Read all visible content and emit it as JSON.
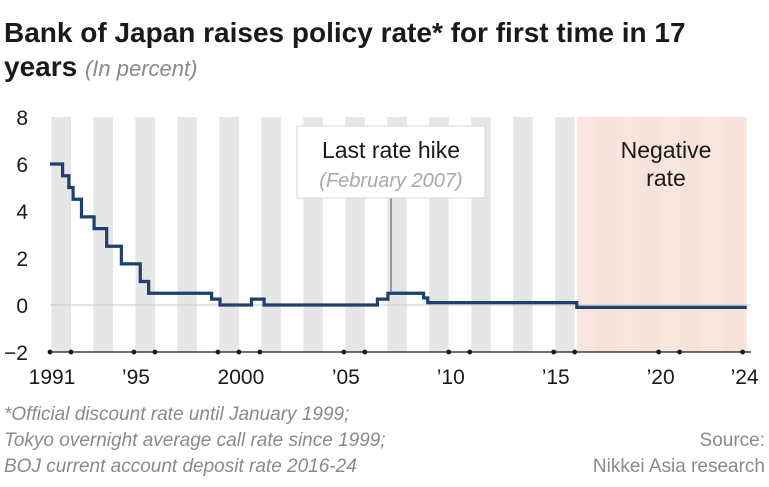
{
  "header": {
    "title": "Bank of Japan raises policy rate* for first time in 17 years",
    "unit": "(In percent)"
  },
  "colors": {
    "line": "#1f3f6e",
    "stripe": "#e6e6e6",
    "negative_band": "#f6e1d8",
    "annotation_gray": "#a8a8a8"
  },
  "chart_data": {
    "type": "line",
    "title": "Bank of Japan raises policy rate* for first time in 17 years",
    "subtitle": "(In percent)",
    "xlabel": "",
    "ylabel": "",
    "xlim": [
      1991,
      2024.4
    ],
    "ylim": [
      -2,
      8
    ],
    "y_ticks": [
      8,
      6,
      4,
      2,
      0,
      -2
    ],
    "y_tick_labels": [
      "8",
      "6",
      "4",
      "2",
      "0",
      "−2"
    ],
    "x_tick_labels": [
      {
        "year": 1991,
        "label": "1991"
      },
      {
        "year": 1995,
        "label": "’95"
      },
      {
        "year": 2000,
        "label": "2000"
      },
      {
        "year": 2005,
        "label": "’05"
      },
      {
        "year": 2010,
        "label": "’10"
      },
      {
        "year": 2015,
        "label": "’15"
      },
      {
        "year": 2020,
        "label": "’20"
      },
      {
        "year": 2024,
        "label": "’24"
      }
    ],
    "x_tick_marks": [
      1991,
      1992,
      1995,
      1996,
      1999,
      2000,
      2001,
      2005,
      2006,
      2010,
      2011,
      2015,
      2016,
      2020,
      2021,
      2024
    ],
    "grid": false,
    "alternating_year_stripes": true,
    "series": [
      {
        "step": true,
        "points": [
          [
            1991.0,
            6.0
          ],
          [
            1991.6,
            5.5
          ],
          [
            1991.9,
            5.0
          ],
          [
            1992.1,
            4.5
          ],
          [
            1992.5,
            3.75
          ],
          [
            1993.1,
            3.25
          ],
          [
            1993.7,
            2.5
          ],
          [
            1994.4,
            1.75
          ],
          [
            1995.3,
            1.0
          ],
          [
            1995.7,
            0.5
          ],
          [
            1998.7,
            0.25
          ],
          [
            1999.1,
            0.0
          ],
          [
            2000.6,
            0.25
          ],
          [
            2001.2,
            0.0
          ],
          [
            2006.6,
            0.25
          ],
          [
            2007.1,
            0.5
          ],
          [
            2008.8,
            0.3
          ],
          [
            2009.0,
            0.1
          ],
          [
            2010.8,
            0.1
          ],
          [
            2016.1,
            -0.1
          ],
          [
            2024.2,
            -0.1
          ]
        ]
      }
    ],
    "annotations": [
      {
        "title": "Last rate hike",
        "subtitle": "(February 2007)",
        "x": 2007.1,
        "y": 0.5
      },
      {
        "title": "Negative rate",
        "x_range": [
          2016.1,
          2024.2
        ]
      }
    ]
  },
  "annotations": {
    "last_hike_title": "Last rate hike",
    "last_hike_date": "(February 2007)",
    "negative_line1": "Negative",
    "negative_line2": "rate"
  },
  "footer": {
    "footnote_line1": "*Official discount rate until January 1999;",
    "footnote_line2": "Tokyo overnight average call rate since 1999;",
    "footnote_line3": "BOJ current account deposit rate 2016-24",
    "source_line1": "Source:",
    "source_line2": "Nikkei Asia research"
  }
}
